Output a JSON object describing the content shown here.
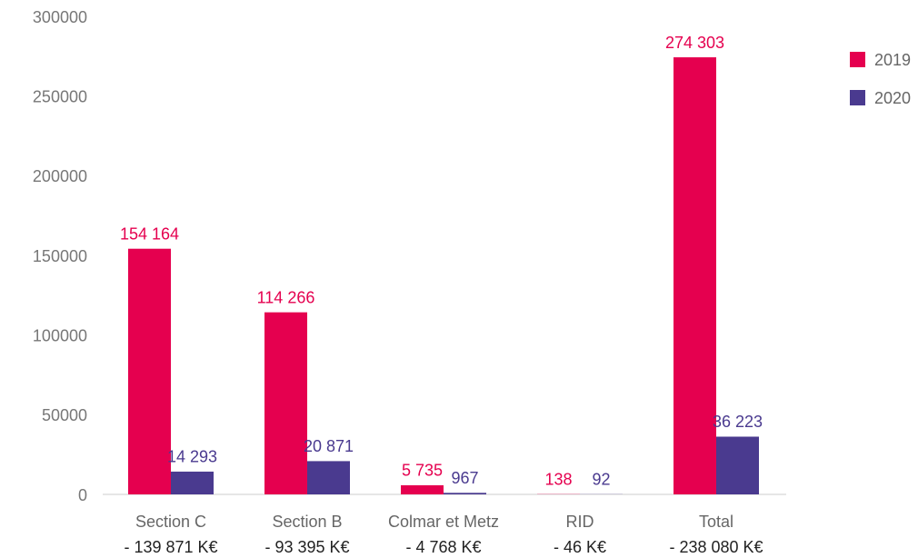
{
  "chart_data": {
    "type": "bar",
    "categories": [
      "Section C",
      "Section B",
      "Colmar et Metz",
      "RID",
      "Total"
    ],
    "category_notes": [
      "- 139 871 K€",
      "- 93 395 K€",
      "- 4 768 K€",
      "- 46 K€",
      "- 238 080 K€"
    ],
    "series": [
      {
        "name": "2019",
        "color": "#e5004f",
        "values": [
          154164,
          114266,
          5735,
          138,
          274303
        ],
        "value_labels": [
          "154 164",
          "114 266",
          "5 735",
          "138",
          "274 303"
        ]
      },
      {
        "name": "2020",
        "color": "#4a3a8f",
        "values": [
          14293,
          20871,
          967,
          92,
          36223
        ],
        "value_labels": [
          "14 293",
          "20 871",
          "967",
          "92",
          "36 223"
        ]
      }
    ],
    "ylim": [
      0,
      300000
    ],
    "yticks": [
      0,
      50000,
      100000,
      150000,
      200000,
      250000,
      300000
    ],
    "legend": "top-right"
  }
}
